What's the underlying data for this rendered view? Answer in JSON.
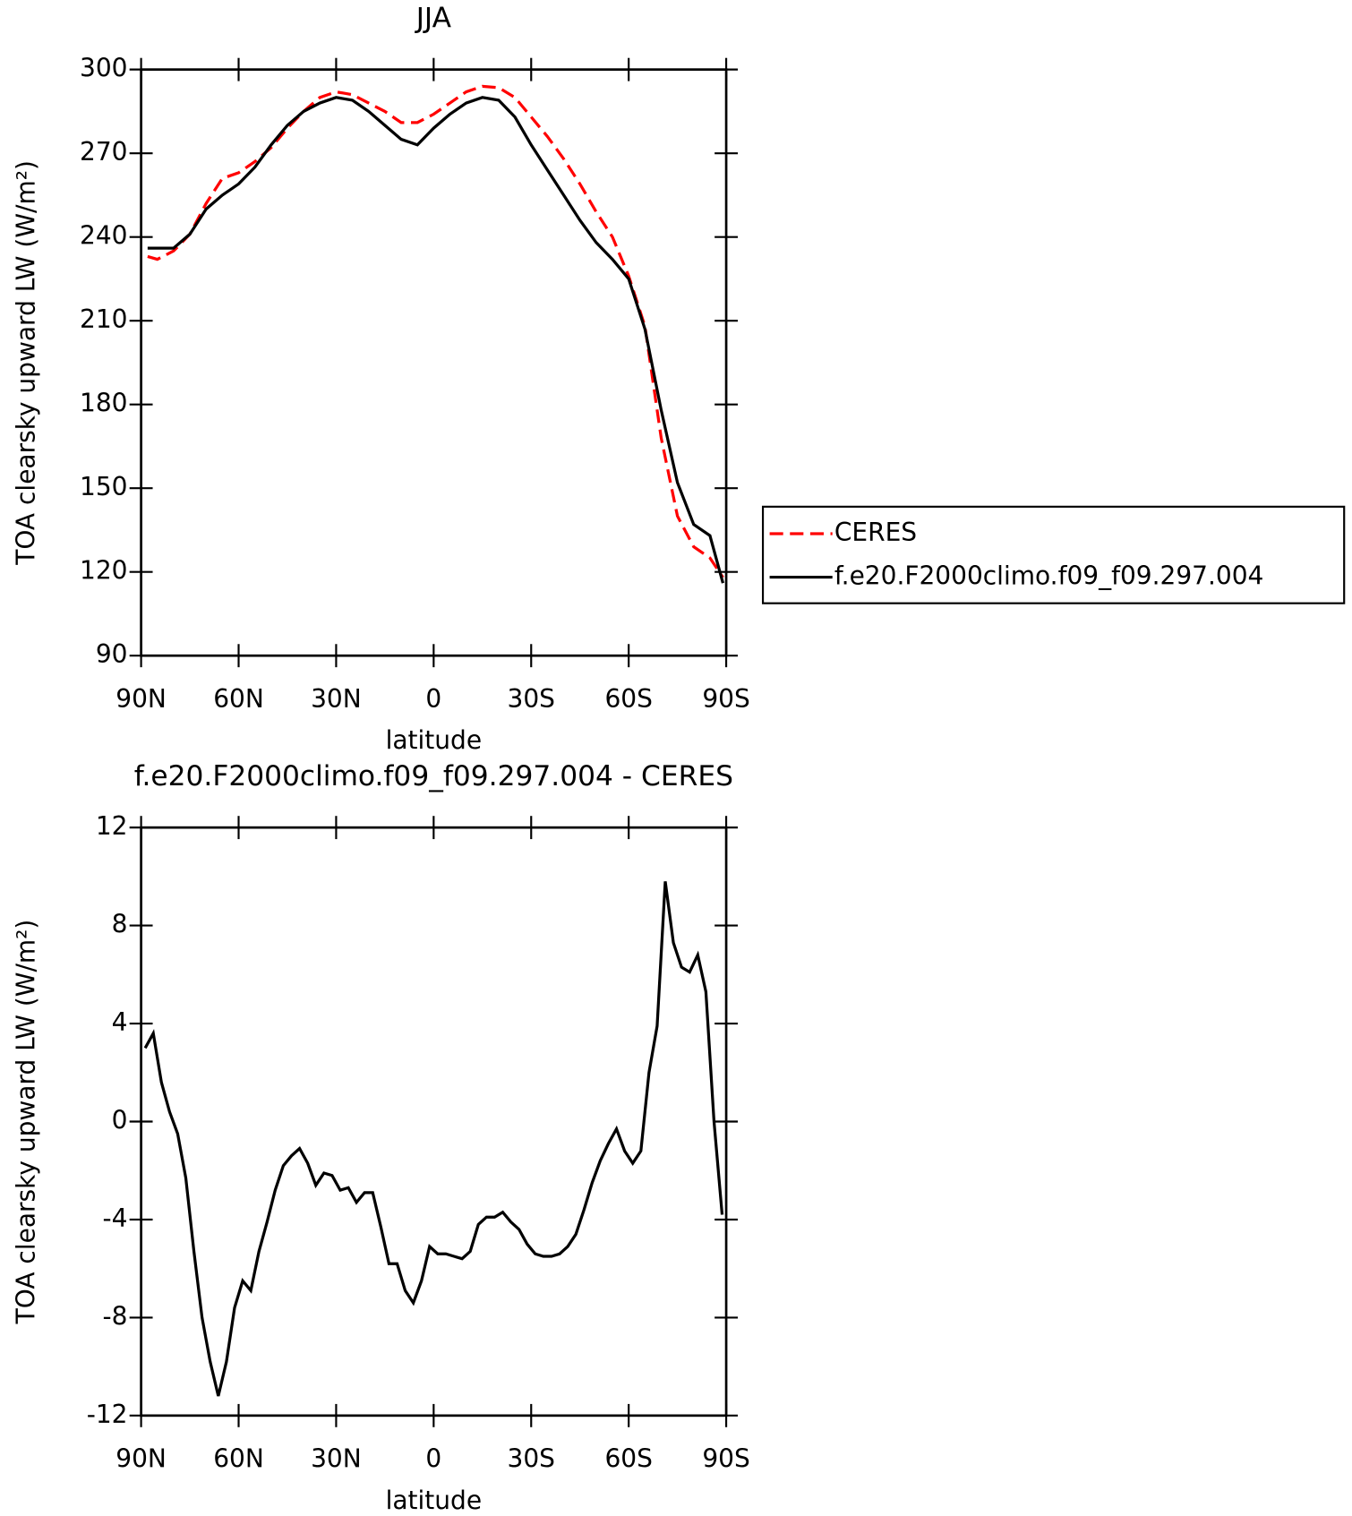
{
  "chart_data": [
    {
      "type": "line",
      "title": "JJA",
      "xlabel": "latitude",
      "ylabel": "TOA clearsky upward LW (W/m²)",
      "x": [
        88,
        85,
        80,
        75,
        70,
        65,
        60,
        55,
        50,
        45,
        40,
        35,
        30,
        25,
        20,
        15,
        10,
        5,
        0,
        -5,
        -10,
        -15,
        -20,
        -25,
        -30,
        -35,
        -40,
        -45,
        -50,
        -55,
        -60,
        -65,
        -70,
        -75,
        -80,
        -85,
        -89
      ],
      "series": [
        {
          "name": "CERES",
          "color": "#ff0000",
          "style": "dashed",
          "values": [
            233,
            232,
            235,
            241,
            252,
            261,
            263,
            267,
            272,
            279,
            285,
            290,
            292,
            291,
            288,
            285,
            281,
            281,
            284,
            288,
            292,
            294,
            293.5,
            290,
            283,
            276,
            268,
            259,
            249,
            240,
            226,
            208,
            168,
            140,
            129,
            125,
            118
          ]
        },
        {
          "name": "f.e20.F2000climo.f09_f09.297.004",
          "color": "#000000",
          "style": "solid",
          "values": [
            236,
            236,
            236,
            241,
            250,
            255,
            259,
            265,
            273,
            280,
            285,
            288,
            290,
            289,
            285,
            280,
            275,
            273,
            279,
            284,
            288,
            290,
            289,
            283,
            273,
            264,
            255,
            246,
            238,
            232,
            225,
            207,
            178,
            152,
            137,
            133,
            116
          ]
        }
      ],
      "xlim": [
        90,
        -90
      ],
      "xticks": [
        {
          "value": 90,
          "label": "90N"
        },
        {
          "value": 60,
          "label": "60N"
        },
        {
          "value": 30,
          "label": "30N"
        },
        0,
        {
          "value": -30,
          "label": "30S"
        },
        {
          "value": -60,
          "label": "60S"
        },
        {
          "value": -90,
          "label": "90S"
        }
      ],
      "ylim": [
        90,
        300
      ],
      "yticks": [
        90,
        120,
        150,
        180,
        210,
        240,
        270,
        300
      ],
      "legend": "right"
    },
    {
      "type": "line",
      "title": "f.e20.F2000climo.f09_f09.297.004 - CERES",
      "xlabel": "latitude",
      "ylabel": "TOA clearsky upward LW (W/m²)",
      "x": [
        88.75,
        86.25,
        83.75,
        81.25,
        78.75,
        76.25,
        73.75,
        71.25,
        68.75,
        66.25,
        63.75,
        61.25,
        58.75,
        56.25,
        53.75,
        51.25,
        48.75,
        46.25,
        43.75,
        41.25,
        38.75,
        36.25,
        33.75,
        31.25,
        28.75,
        26.25,
        23.75,
        21.25,
        18.75,
        16.25,
        13.75,
        11.25,
        8.75,
        6.25,
        3.75,
        1.25,
        -1.25,
        -3.75,
        -6.25,
        -8.75,
        -11.25,
        -13.75,
        -16.25,
        -18.75,
        -21.25,
        -23.75,
        -26.25,
        -28.75,
        -31.25,
        -33.75,
        -36.25,
        -38.75,
        -41.25,
        -43.75,
        -46.25,
        -48.75,
        -51.25,
        -53.75,
        -56.25,
        -58.75,
        -61.25,
        -63.75,
        -66.25,
        -68.75,
        -71.25,
        -73.75,
        -76.25,
        -78.75,
        -81.25,
        -83.75,
        -86.25,
        -88.75
      ],
      "series": [
        {
          "color": "#000000",
          "style": "solid",
          "values": [
            3.0,
            3.6,
            1.6,
            0.4,
            -0.5,
            -2.3,
            -5.3,
            -8.0,
            -9.8,
            -11.2,
            -9.8,
            -7.6,
            -6.5,
            -6.9,
            -5.3,
            -4.1,
            -2.8,
            -1.8,
            -1.4,
            -1.1,
            -1.7,
            -2.6,
            -2.1,
            -2.2,
            -2.8,
            -2.7,
            -3.3,
            -2.9,
            -2.9,
            -4.3,
            -5.8,
            -5.8,
            -6.9,
            -7.4,
            -6.5,
            -5.1,
            -5.4,
            -5.4,
            -5.5,
            -5.6,
            -5.3,
            -4.2,
            -3.9,
            -3.9,
            -3.7,
            -4.1,
            -4.4,
            -5.0,
            -5.4,
            -5.5,
            -5.5,
            -5.4,
            -5.1,
            -4.6,
            -3.6,
            -2.5,
            -1.6,
            -0.9,
            -0.3,
            -1.2,
            -1.7,
            -1.2,
            2.0,
            3.9,
            9.8,
            7.3,
            6.3,
            6.1,
            6.8,
            5.3,
            0.0,
            -3.8
          ]
        }
      ],
      "xlim": [
        90,
        -90
      ],
      "xticks": [
        {
          "value": 90,
          "label": "90N"
        },
        {
          "value": 60,
          "label": "60N"
        },
        {
          "value": 30,
          "label": "30N"
        },
        0,
        {
          "value": -30,
          "label": "30S"
        },
        {
          "value": -60,
          "label": "60S"
        },
        {
          "value": -90,
          "label": "90S"
        }
      ],
      "ylim": [
        -12,
        12
      ],
      "yticks": [
        -12,
        -8,
        -4,
        0,
        4,
        8,
        12
      ]
    }
  ]
}
